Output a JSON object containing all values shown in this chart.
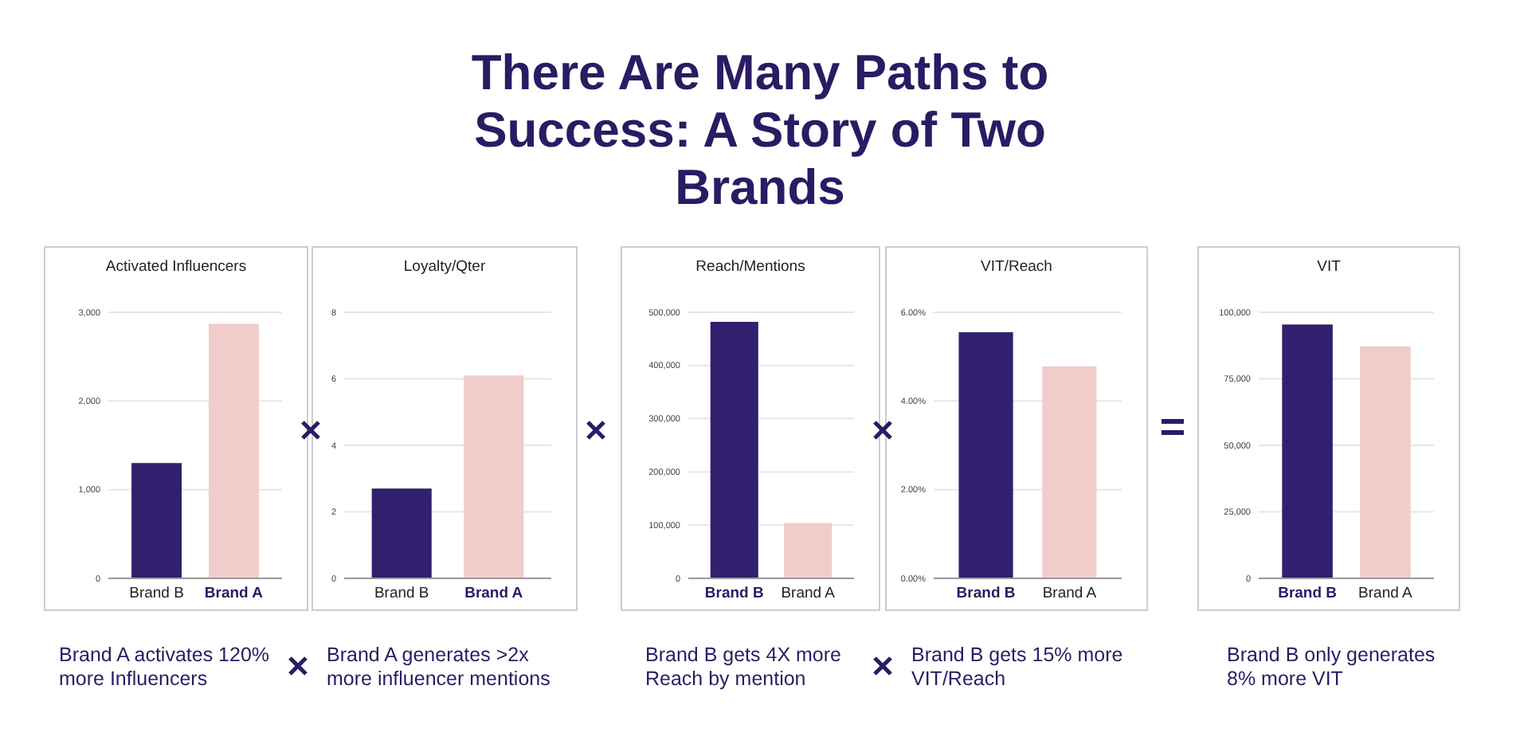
{
  "chart_data": [
    {
      "type": "bar",
      "title": "Activated Influencers",
      "categories": [
        "Brand B",
        "Brand A"
      ],
      "values": [
        1300,
        2870
      ],
      "colors": [
        "#32206e",
        "#f0cccb"
      ],
      "ylim": [
        0,
        3000
      ],
      "yticks": [
        {
          "value": 0,
          "label": "0"
        },
        {
          "value": 1000,
          "label": "1,000"
        },
        {
          "value": 2000,
          "label": "2,000"
        },
        {
          "value": 3000,
          "label": "3,000"
        }
      ],
      "grid": "y",
      "annotations": [
        "There Are Many Paths to Success: A Story of Two Brands",
        "Brand A activates 120% more Influencers"
      ]
    },
    {
      "type": "bar",
      "title": "Loyalty/Qter",
      "categories": [
        "Brand B",
        "Brand A"
      ],
      "values": [
        2.7,
        6.1
      ],
      "colors": [
        "#32206e",
        "#f0cccb"
      ],
      "ylim": [
        0,
        8
      ],
      "yticks": [
        0,
        2,
        4,
        6,
        8
      ],
      "grid": "y",
      "annotations": [
        "Brand A generates >2x more influencer mentions"
      ]
    },
    {
      "type": "bar",
      "title": "Reach/Mentions",
      "categories": [
        "Brand B",
        "Brand A"
      ],
      "values": [
        482000,
        104000
      ],
      "colors": [
        "#32206e",
        "#f0cccb"
      ],
      "ylim": [
        0,
        500000
      ],
      "yticks": [
        {
          "value": 0,
          "label": "0"
        },
        {
          "value": 100000,
          "label": "100,000"
        },
        {
          "value": 200000,
          "label": "200,000"
        },
        {
          "value": 300000,
          "label": "300,000"
        },
        {
          "value": 400000,
          "label": "400,000"
        },
        {
          "value": 500000,
          "label": "500,000"
        }
      ],
      "grid": "y",
      "annotations": [
        "Brand B gets 4X more Reach by mention"
      ]
    },
    {
      "type": "bar",
      "title": "VIT/Reach",
      "categories": [
        "Brand B",
        "Brand A"
      ],
      "values": [
        5.55,
        4.78
      ],
      "colors": [
        "#32206e",
        "#f0cccb"
      ],
      "ylim": [
        0,
        6
      ],
      "yticks": [
        {
          "value": 0,
          "label": "0.00%"
        },
        {
          "value": 2,
          "label": "2.00%"
        },
        {
          "value": 4,
          "label": "4.00%"
        },
        {
          "value": 6,
          "label": "6.00%"
        }
      ],
      "grid": "y",
      "annotations": [
        "Brand B gets 15% more VIT/Reach"
      ]
    },
    {
      "type": "bar",
      "title": "VIT",
      "categories": [
        "Brand B",
        "Brand A"
      ],
      "values": [
        95400,
        87200
      ],
      "colors": [
        "#32206e",
        "#f0cccb"
      ],
      "ylim": [
        0,
        100000
      ],
      "yticks": [
        {
          "value": 0,
          "label": "0"
        },
        {
          "value": 25000,
          "label": "25,000"
        },
        {
          "value": 50000,
          "label": "50,000"
        },
        {
          "value": 75000,
          "label": "75,000"
        },
        {
          "value": 100000,
          "label": "100,000"
        }
      ],
      "grid": "y",
      "annotations": [
        "Brand B only generates 8% more VIT"
      ]
    }
  ]
}
